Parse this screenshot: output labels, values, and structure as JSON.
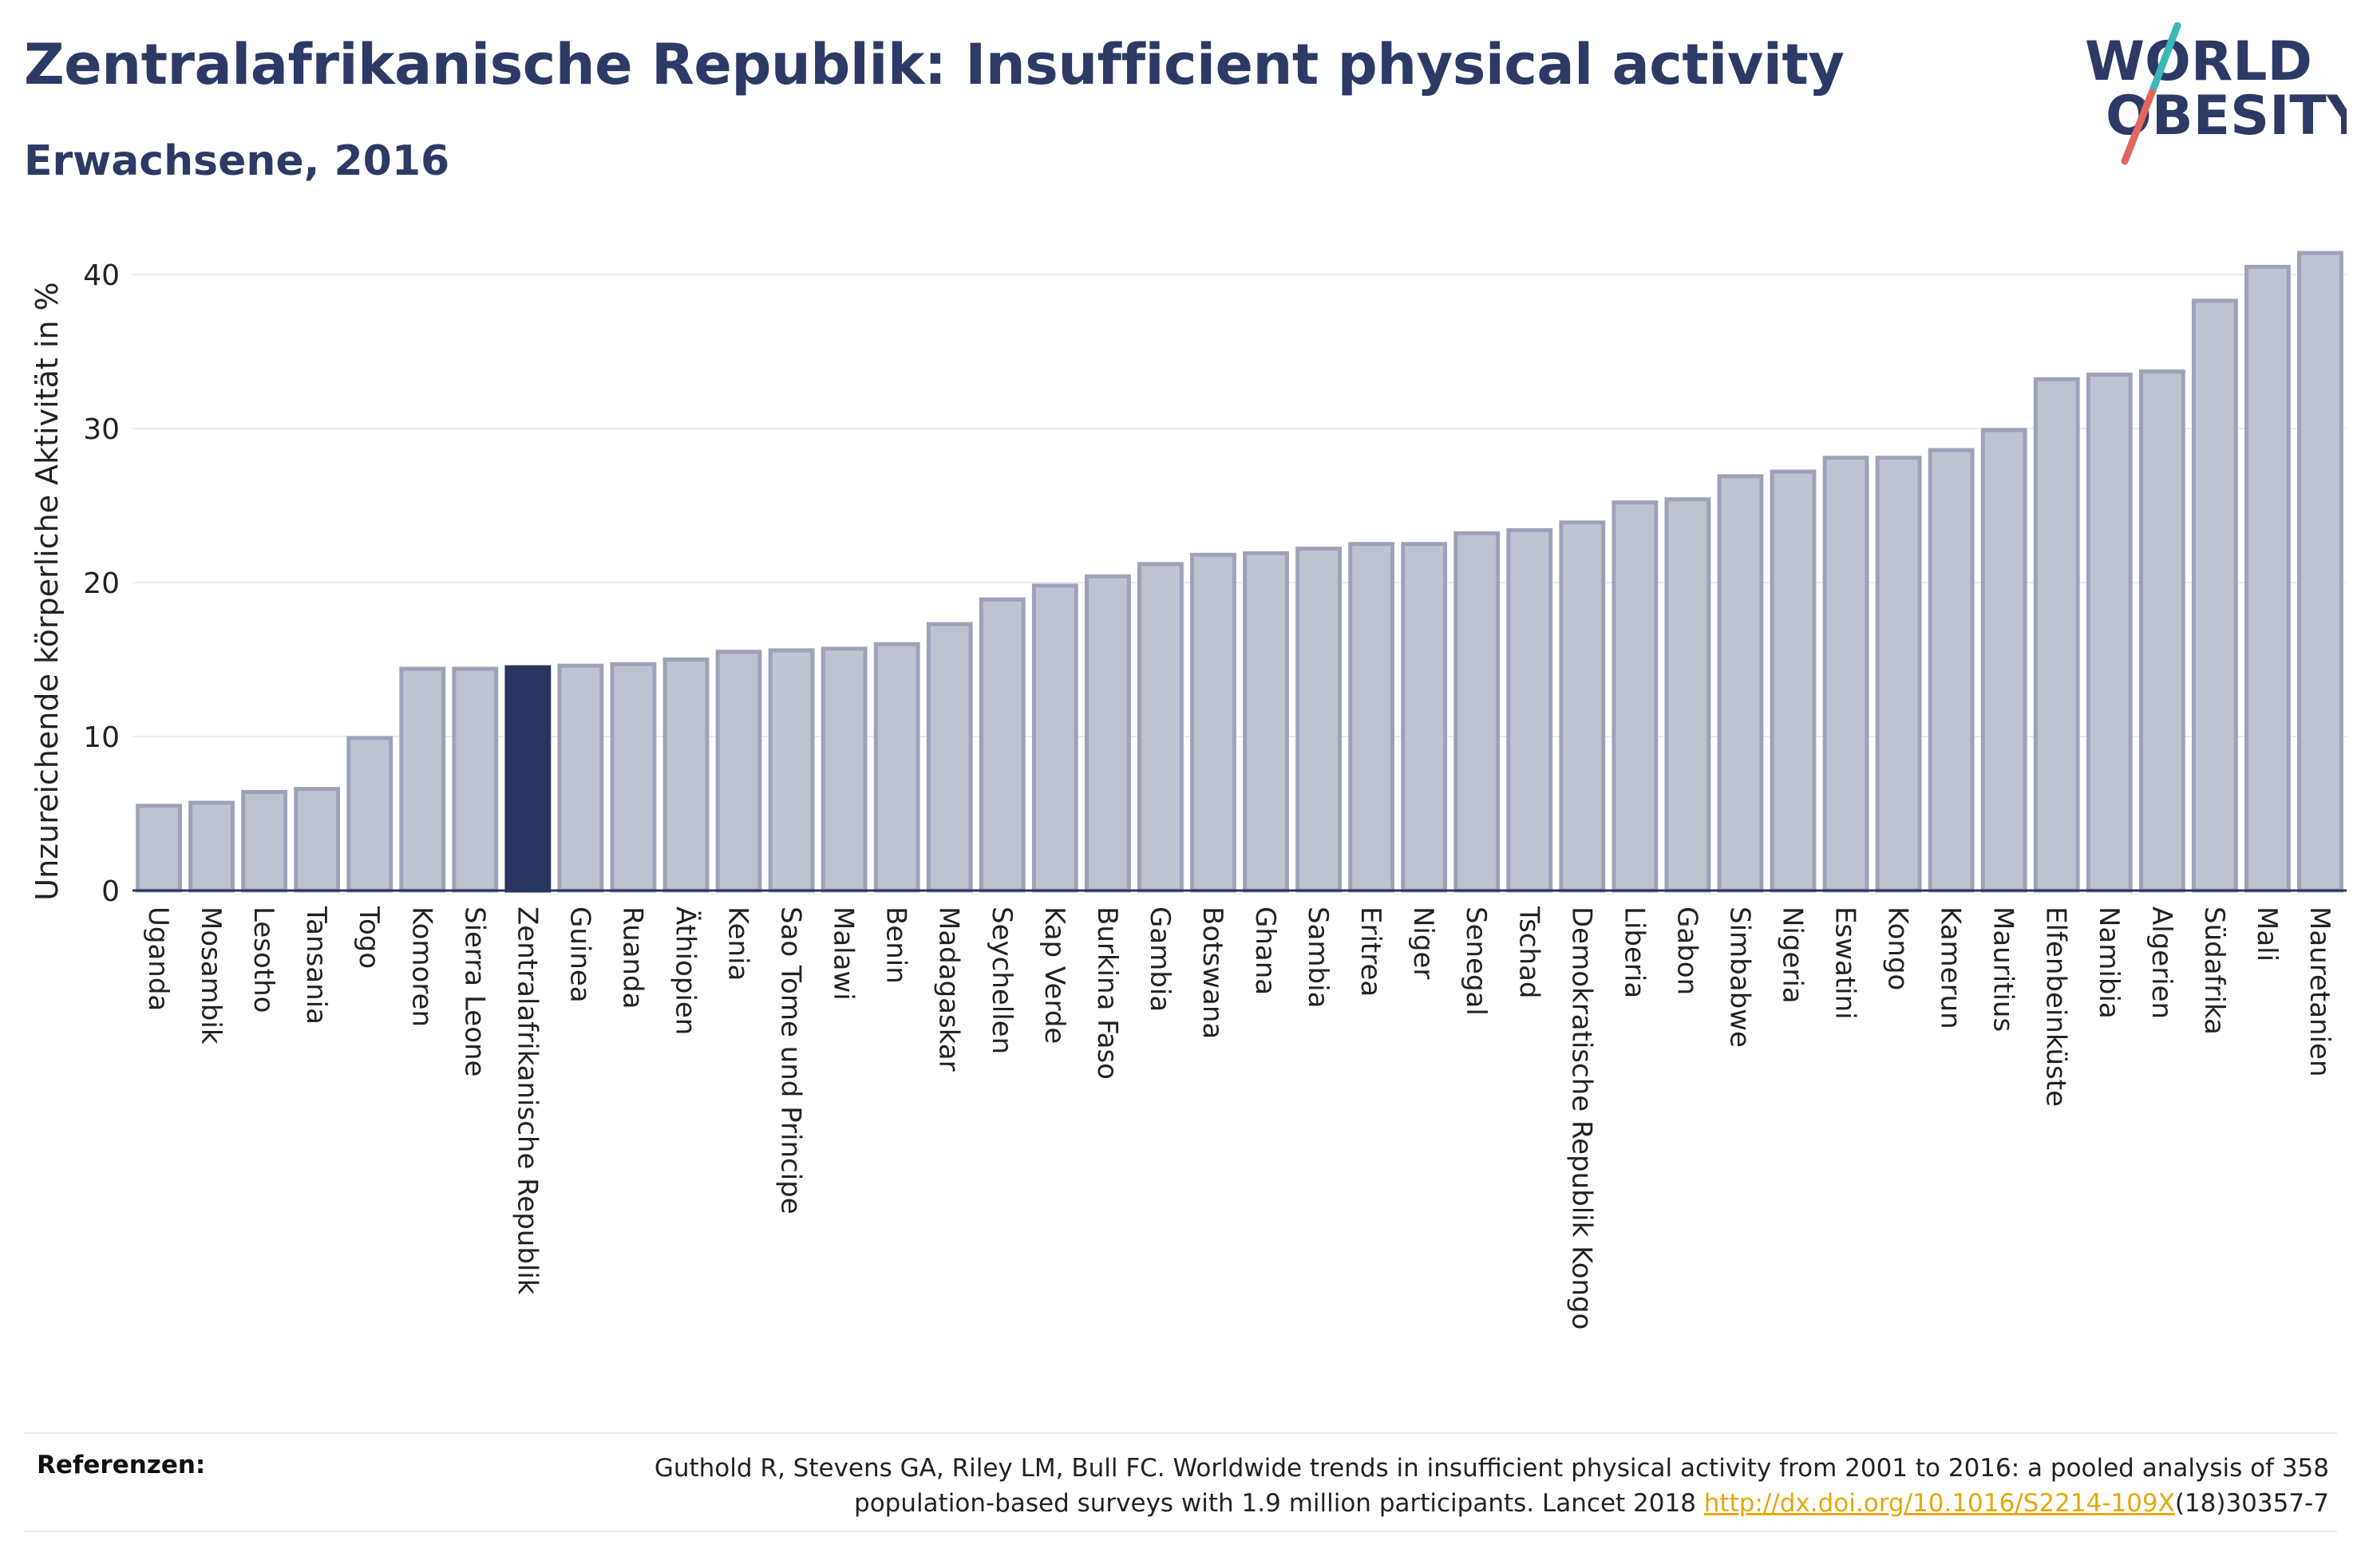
{
  "header": {
    "title": "Zentralafrikanische Republik: Insufficient physical activity",
    "subtitle": "Erwachsene, 2016"
  },
  "logo": {
    "line1": "WORLD",
    "line2": "OBESITY",
    "colors": {
      "text": "#2d3a66",
      "slash_top": "#3bb7b5",
      "slash_bottom": "#e4675f"
    }
  },
  "chart_data": {
    "type": "bar",
    "title": "Zentralafrikanische Republik: Insufficient physical activity",
    "subtitle": "Erwachsene, 2016",
    "xlabel": "",
    "ylabel": "Unzureichende körperliche Aktivität in %",
    "ylim": [
      0,
      43
    ],
    "yticks": [
      0,
      10,
      20,
      30,
      40
    ],
    "grid": true,
    "highlight": "Zentralafrikanische Republik",
    "colors": {
      "bar": "#bfc3d0",
      "bar_border": "#9da2b8",
      "highlight": "#2a3560"
    },
    "categories": [
      "Uganda",
      "Mosambik",
      "Lesotho",
      "Tansania",
      "Togo",
      "Komoren",
      "Sierra Leone",
      "Zentralafrikanische Republik",
      "Guinea",
      "Ruanda",
      "Äthiopien",
      "Kenia",
      "Sao Tome und Principe",
      "Malawi",
      "Benin",
      "Madagaskar",
      "Seychellen",
      "Kap Verde",
      "Burkina Faso",
      "Gambia",
      "Botswana",
      "Ghana",
      "Sambia",
      "Eritrea",
      "Niger",
      "Senegal",
      "Tschad",
      "Demokratische Republik Kongo",
      "Liberia",
      "Gabon",
      "Simbabwe",
      "Nigeria",
      "Eswatini",
      "Kongo",
      "Kamerun",
      "Mauritius",
      "Elfenbeinküste",
      "Namibia",
      "Algerien",
      "Südafrika",
      "Mali",
      "Mauretanien"
    ],
    "values": [
      5.5,
      5.7,
      6.4,
      6.6,
      9.9,
      14.4,
      14.4,
      14.5,
      14.6,
      14.7,
      15.0,
      15.5,
      15.6,
      15.7,
      16.0,
      17.3,
      18.9,
      19.8,
      20.4,
      21.2,
      21.8,
      21.9,
      22.2,
      22.5,
      22.5,
      23.2,
      23.4,
      23.9,
      25.2,
      25.4,
      26.9,
      27.2,
      28.1,
      28.1,
      28.6,
      29.9,
      33.2,
      33.5,
      33.7,
      38.3,
      40.5,
      41.4
    ]
  },
  "footer": {
    "ref_label": "Referenzen:",
    "ref_line1": "Guthold R, Stevens GA, Riley LM, Bull FC. Worldwide trends in insufficient physical activity from 2001 to 2016: a pooled analysis of 358",
    "ref_line2_prefix": "population-based surveys with 1.9 million participants. Lancet 2018 ",
    "ref_link": "http://dx.doi.org/10.1016/S2214-109X",
    "ref_line2_suffix": "(18)30357-7"
  }
}
